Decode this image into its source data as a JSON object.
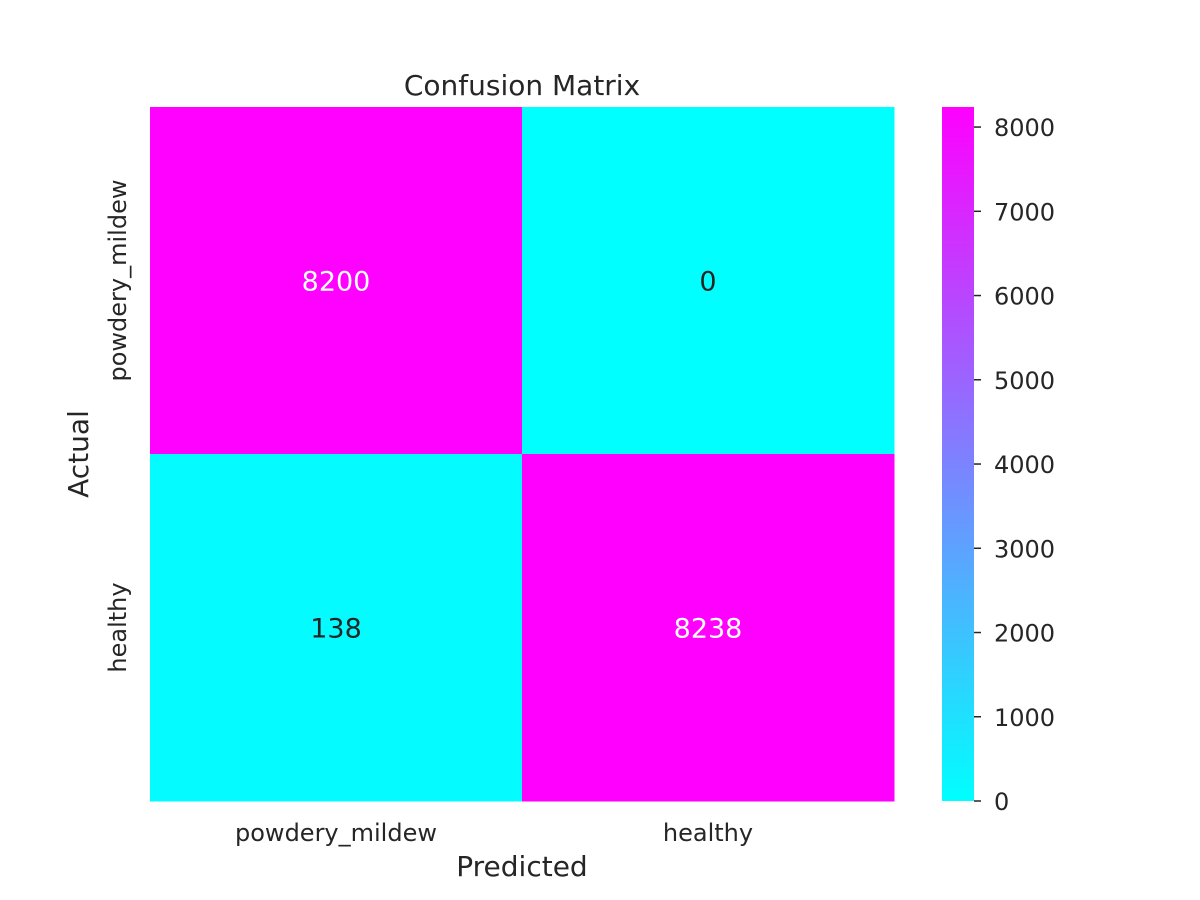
{
  "chart_data": {
    "type": "heatmap",
    "title": "Confusion Matrix",
    "xlabel": "Predicted",
    "ylabel": "Actual",
    "x_categories": [
      "powdery_mildew",
      "healthy"
    ],
    "y_categories": [
      "powdery_mildew",
      "healthy"
    ],
    "values": [
      [
        8200,
        0
      ],
      [
        138,
        8238
      ]
    ],
    "colormap": "cool",
    "colormap_low": "#00ffff",
    "colormap_high": "#ff00ff",
    "annotation_light_text_color": "#ffffff",
    "annotation_dark_text_color": "#262626",
    "vmin": 0,
    "vmax": 8238,
    "colorbar_ticks": [
      0,
      1000,
      2000,
      3000,
      4000,
      5000,
      6000,
      7000,
      8000
    ],
    "grid": false,
    "colorbar": true
  }
}
